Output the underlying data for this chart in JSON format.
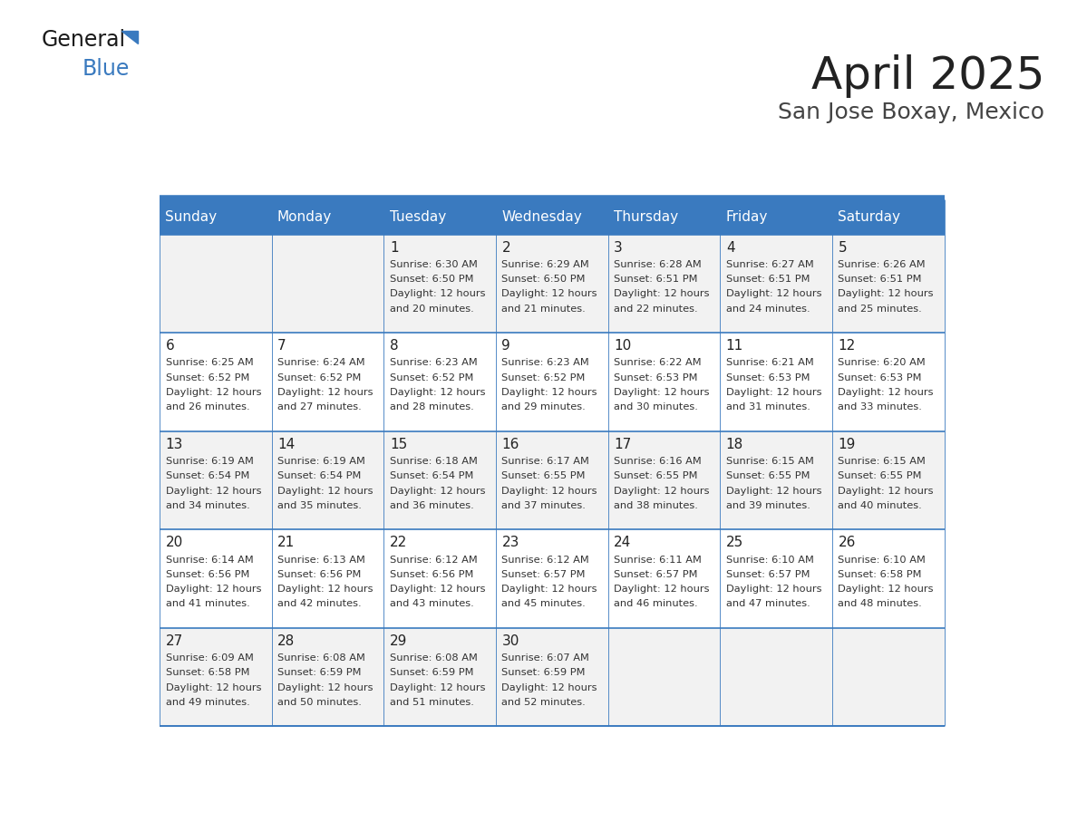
{
  "title": "April 2025",
  "subtitle": "San Jose Boxay, Mexico",
  "header_color": "#3a7abf",
  "header_text_color": "#ffffff",
  "cell_bg_even": "#f2f2f2",
  "cell_bg_odd": "#ffffff",
  "border_color": "#3a7abf",
  "title_color": "#222222",
  "subtitle_color": "#444444",
  "days_of_week": [
    "Sunday",
    "Monday",
    "Tuesday",
    "Wednesday",
    "Thursday",
    "Friday",
    "Saturday"
  ],
  "calendar": [
    [
      {
        "day": "",
        "sunrise": "",
        "sunset": "",
        "daylight": ""
      },
      {
        "day": "",
        "sunrise": "",
        "sunset": "",
        "daylight": ""
      },
      {
        "day": "1",
        "sunrise": "6:30 AM",
        "sunset": "6:50 PM",
        "daylight": "12 hours and 20 minutes."
      },
      {
        "day": "2",
        "sunrise": "6:29 AM",
        "sunset": "6:50 PM",
        "daylight": "12 hours and 21 minutes."
      },
      {
        "day": "3",
        "sunrise": "6:28 AM",
        "sunset": "6:51 PM",
        "daylight": "12 hours and 22 minutes."
      },
      {
        "day": "4",
        "sunrise": "6:27 AM",
        "sunset": "6:51 PM",
        "daylight": "12 hours and 24 minutes."
      },
      {
        "day": "5",
        "sunrise": "6:26 AM",
        "sunset": "6:51 PM",
        "daylight": "12 hours and 25 minutes."
      }
    ],
    [
      {
        "day": "6",
        "sunrise": "6:25 AM",
        "sunset": "6:52 PM",
        "daylight": "12 hours and 26 minutes."
      },
      {
        "day": "7",
        "sunrise": "6:24 AM",
        "sunset": "6:52 PM",
        "daylight": "12 hours and 27 minutes."
      },
      {
        "day": "8",
        "sunrise": "6:23 AM",
        "sunset": "6:52 PM",
        "daylight": "12 hours and 28 minutes."
      },
      {
        "day": "9",
        "sunrise": "6:23 AM",
        "sunset": "6:52 PM",
        "daylight": "12 hours and 29 minutes."
      },
      {
        "day": "10",
        "sunrise": "6:22 AM",
        "sunset": "6:53 PM",
        "daylight": "12 hours and 30 minutes."
      },
      {
        "day": "11",
        "sunrise": "6:21 AM",
        "sunset": "6:53 PM",
        "daylight": "12 hours and 31 minutes."
      },
      {
        "day": "12",
        "sunrise": "6:20 AM",
        "sunset": "6:53 PM",
        "daylight": "12 hours and 33 minutes."
      }
    ],
    [
      {
        "day": "13",
        "sunrise": "6:19 AM",
        "sunset": "6:54 PM",
        "daylight": "12 hours and 34 minutes."
      },
      {
        "day": "14",
        "sunrise": "6:19 AM",
        "sunset": "6:54 PM",
        "daylight": "12 hours and 35 minutes."
      },
      {
        "day": "15",
        "sunrise": "6:18 AM",
        "sunset": "6:54 PM",
        "daylight": "12 hours and 36 minutes."
      },
      {
        "day": "16",
        "sunrise": "6:17 AM",
        "sunset": "6:55 PM",
        "daylight": "12 hours and 37 minutes."
      },
      {
        "day": "17",
        "sunrise": "6:16 AM",
        "sunset": "6:55 PM",
        "daylight": "12 hours and 38 minutes."
      },
      {
        "day": "18",
        "sunrise": "6:15 AM",
        "sunset": "6:55 PM",
        "daylight": "12 hours and 39 minutes."
      },
      {
        "day": "19",
        "sunrise": "6:15 AM",
        "sunset": "6:55 PM",
        "daylight": "12 hours and 40 minutes."
      }
    ],
    [
      {
        "day": "20",
        "sunrise": "6:14 AM",
        "sunset": "6:56 PM",
        "daylight": "12 hours and 41 minutes."
      },
      {
        "day": "21",
        "sunrise": "6:13 AM",
        "sunset": "6:56 PM",
        "daylight": "12 hours and 42 minutes."
      },
      {
        "day": "22",
        "sunrise": "6:12 AM",
        "sunset": "6:56 PM",
        "daylight": "12 hours and 43 minutes."
      },
      {
        "day": "23",
        "sunrise": "6:12 AM",
        "sunset": "6:57 PM",
        "daylight": "12 hours and 45 minutes."
      },
      {
        "day": "24",
        "sunrise": "6:11 AM",
        "sunset": "6:57 PM",
        "daylight": "12 hours and 46 minutes."
      },
      {
        "day": "25",
        "sunrise": "6:10 AM",
        "sunset": "6:57 PM",
        "daylight": "12 hours and 47 minutes."
      },
      {
        "day": "26",
        "sunrise": "6:10 AM",
        "sunset": "6:58 PM",
        "daylight": "12 hours and 48 minutes."
      }
    ],
    [
      {
        "day": "27",
        "sunrise": "6:09 AM",
        "sunset": "6:58 PM",
        "daylight": "12 hours and 49 minutes."
      },
      {
        "day": "28",
        "sunrise": "6:08 AM",
        "sunset": "6:59 PM",
        "daylight": "12 hours and 50 minutes."
      },
      {
        "day": "29",
        "sunrise": "6:08 AM",
        "sunset": "6:59 PM",
        "daylight": "12 hours and 51 minutes."
      },
      {
        "day": "30",
        "sunrise": "6:07 AM",
        "sunset": "6:59 PM",
        "daylight": "12 hours and 52 minutes."
      },
      {
        "day": "",
        "sunrise": "",
        "sunset": "",
        "daylight": ""
      },
      {
        "day": "",
        "sunrise": "",
        "sunset": "",
        "daylight": ""
      },
      {
        "day": "",
        "sunrise": "",
        "sunset": "",
        "daylight": ""
      }
    ]
  ]
}
